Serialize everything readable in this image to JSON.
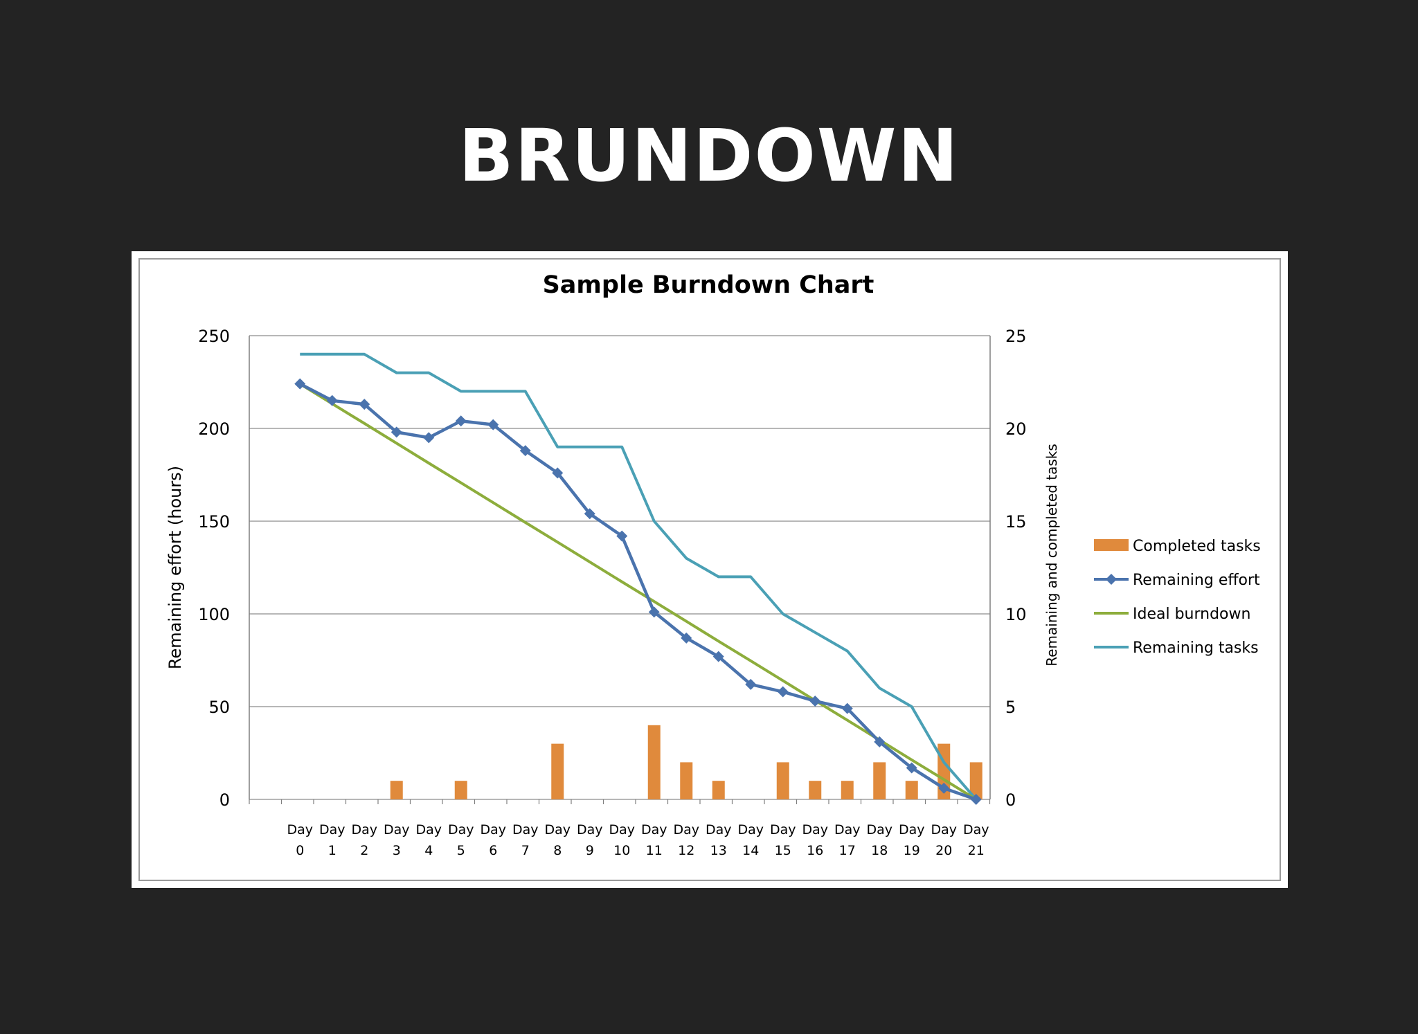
{
  "slide": {
    "title": "BRUNDOWN"
  },
  "colors": {
    "background": "#232323",
    "completed_tasks": "#E08A3C",
    "remaining_effort": "#4A73AD",
    "ideal_burndown": "#8DAD3C",
    "remaining_tasks": "#4AA0B5",
    "grid": "#8c8c8c"
  },
  "chart_data": {
    "type": "bar+line",
    "title": "Sample Burndown Chart",
    "categories": [
      "Day 0",
      "Day 1",
      "Day 2",
      "Day 3",
      "Day 4",
      "Day 5",
      "Day 6",
      "Day 7",
      "Day 8",
      "Day 9",
      "Day 10",
      "Day 11",
      "Day 12",
      "Day 13",
      "Day 14",
      "Day 15",
      "Day 16",
      "Day 17",
      "Day 18",
      "Day 19",
      "Day 20",
      "Day 21"
    ],
    "y_left": {
      "label": "Remaining effort (hours)",
      "ylim": [
        0,
        250
      ],
      "ticks": [
        0,
        50,
        100,
        150,
        200,
        250
      ]
    },
    "y_right": {
      "label": "Remaining and completed tasks",
      "ylim": [
        0,
        25
      ],
      "ticks": [
        0,
        5,
        10,
        15,
        20,
        25
      ]
    },
    "grid": true,
    "legend_position": "right",
    "series": [
      {
        "name": "Completed tasks",
        "kind": "bar",
        "axis": "right",
        "marker": "none",
        "values": [
          0,
          0,
          0,
          1,
          0,
          1,
          0,
          0,
          3,
          0,
          0,
          4,
          2,
          1,
          0,
          2,
          1,
          1,
          2,
          1,
          3,
          2
        ]
      },
      {
        "name": "Remaining effort",
        "kind": "line",
        "axis": "left",
        "marker": "diamond",
        "values": [
          224,
          215,
          213,
          198,
          195,
          204,
          202,
          188,
          176,
          154,
          142,
          101,
          87,
          77,
          62,
          58,
          53,
          49,
          31,
          17,
          6,
          0
        ]
      },
      {
        "name": "Ideal burndown",
        "kind": "line",
        "axis": "left",
        "marker": "none",
        "values": [
          224,
          213.3,
          202.7,
          192,
          181.3,
          170.7,
          160,
          149.3,
          138.7,
          128,
          117.3,
          106.7,
          96,
          85.3,
          74.7,
          64,
          53.3,
          42.7,
          32,
          21.3,
          10.7,
          0
        ]
      },
      {
        "name": "Remaining tasks",
        "kind": "line",
        "axis": "right",
        "marker": "none",
        "values": [
          24,
          24,
          24,
          23,
          23,
          22,
          22,
          22,
          19,
          19,
          19,
          15,
          13,
          12,
          12,
          10,
          9,
          8,
          6,
          5,
          2,
          0
        ]
      }
    ]
  }
}
